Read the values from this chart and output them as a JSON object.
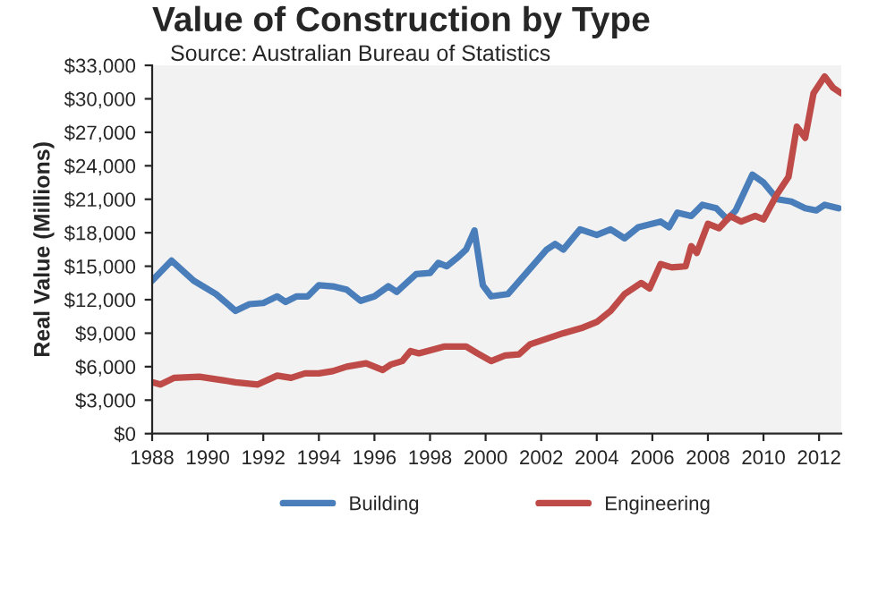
{
  "chart_data": {
    "type": "line",
    "title": "Value of Construction by Type",
    "subtitle": "Source: Australian Bureau of Statistics",
    "ylabel": "Real Value (Millions)",
    "xlim": [
      1988,
      2012.8
    ],
    "xticks": [
      1988,
      1990,
      1992,
      1994,
      1996,
      1998,
      2000,
      2002,
      2004,
      2006,
      2008,
      2010,
      2012
    ],
    "ylim": [
      0,
      33000
    ],
    "yticks": [
      {
        "value": 0,
        "label": "$0"
      },
      {
        "value": 3000,
        "label": "$3,000"
      },
      {
        "value": 6000,
        "label": "$6,000"
      },
      {
        "value": 9000,
        "label": "$9,000"
      },
      {
        "value": 12000,
        "label": "$12,000"
      },
      {
        "value": 15000,
        "label": "$15,000"
      },
      {
        "value": 18000,
        "label": "$18,000"
      },
      {
        "value": 21000,
        "label": "$21,000"
      },
      {
        "value": 24000,
        "label": "$24,000"
      },
      {
        "value": 27000,
        "label": "$27,000"
      },
      {
        "value": 30000,
        "label": "$30,000"
      },
      {
        "value": 33000,
        "label": "$33,000"
      }
    ],
    "grid": false,
    "legend": "bottom",
    "marker": "none",
    "line_style": "solid",
    "series": [
      {
        "name": "Building",
        "color": "#4a7ebb",
        "x": [
          1988,
          1988.7,
          1989.5,
          1990.3,
          1991,
          1991.5,
          1992,
          1992.5,
          1992.8,
          1993.2,
          1993.6,
          1994,
          1994.5,
          1995,
          1995.5,
          1996,
          1996.5,
          1996.8,
          1997.5,
          1998,
          1998.3,
          1998.6,
          1999,
          1999.3,
          1999.6,
          1999.9,
          2000.2,
          2000.8,
          2001.5,
          2002.2,
          2002.5,
          2002.8,
          2003.4,
          2004,
          2004.5,
          2005,
          2005.5,
          2006.3,
          2006.6,
          2006.9,
          2007.4,
          2007.8,
          2008.3,
          2008.7,
          2009,
          2009.6,
          2010,
          2010.5,
          2011,
          2011.5,
          2011.9,
          2012.2,
          2012.7
        ],
        "values": [
          13700,
          15500,
          13700,
          12500,
          11000,
          11600,
          11700,
          12300,
          11800,
          12300,
          12300,
          13300,
          13200,
          12900,
          11900,
          12300,
          13200,
          12700,
          14300,
          14400,
          15300,
          15000,
          15800,
          16500,
          18200,
          13300,
          12300,
          12500,
          14500,
          16500,
          17000,
          16500,
          18300,
          17800,
          18300,
          17500,
          18500,
          19000,
          18500,
          19800,
          19500,
          20500,
          20200,
          19200,
          20000,
          23200,
          22500,
          21000,
          20800,
          20200,
          20000,
          20500,
          20200
        ]
      },
      {
        "name": "Engineering",
        "color": "#be4b48",
        "x": [
          1988,
          1988.3,
          1988.8,
          1989.7,
          1990.5,
          1991,
          1991.8,
          1992.5,
          1993,
          1993.5,
          1994,
          1994.5,
          1995,
          1995.7,
          1996.3,
          1996.6,
          1997,
          1997.3,
          1997.6,
          1998.5,
          1999.3,
          1999.7,
          2000.2,
          2000.7,
          2001.2,
          2001.6,
          2002.2,
          2002.8,
          2003.5,
          2004,
          2004.5,
          2005,
          2005.6,
          2005.9,
          2006.3,
          2006.7,
          2007.2,
          2007.4,
          2007.6,
          2008,
          2008.4,
          2008.8,
          2009.2,
          2009.7,
          2010,
          2010.5,
          2010.9,
          2011.2,
          2011.5,
          2011.8,
          2012.2,
          2012.5,
          2012.8
        ],
        "values": [
          4600,
          4400,
          5000,
          5100,
          4800,
          4600,
          4400,
          5200,
          5000,
          5400,
          5400,
          5600,
          6000,
          6300,
          5700,
          6200,
          6500,
          7400,
          7200,
          7800,
          7800,
          7200,
          6500,
          7000,
          7100,
          8000,
          8500,
          9000,
          9500,
          10000,
          11000,
          12500,
          13500,
          13000,
          15200,
          14900,
          15000,
          16800,
          16200,
          18800,
          18400,
          19500,
          19000,
          19500,
          19200,
          21500,
          23000,
          27500,
          26500,
          30500,
          32000,
          31000,
          30500
        ]
      }
    ]
  }
}
